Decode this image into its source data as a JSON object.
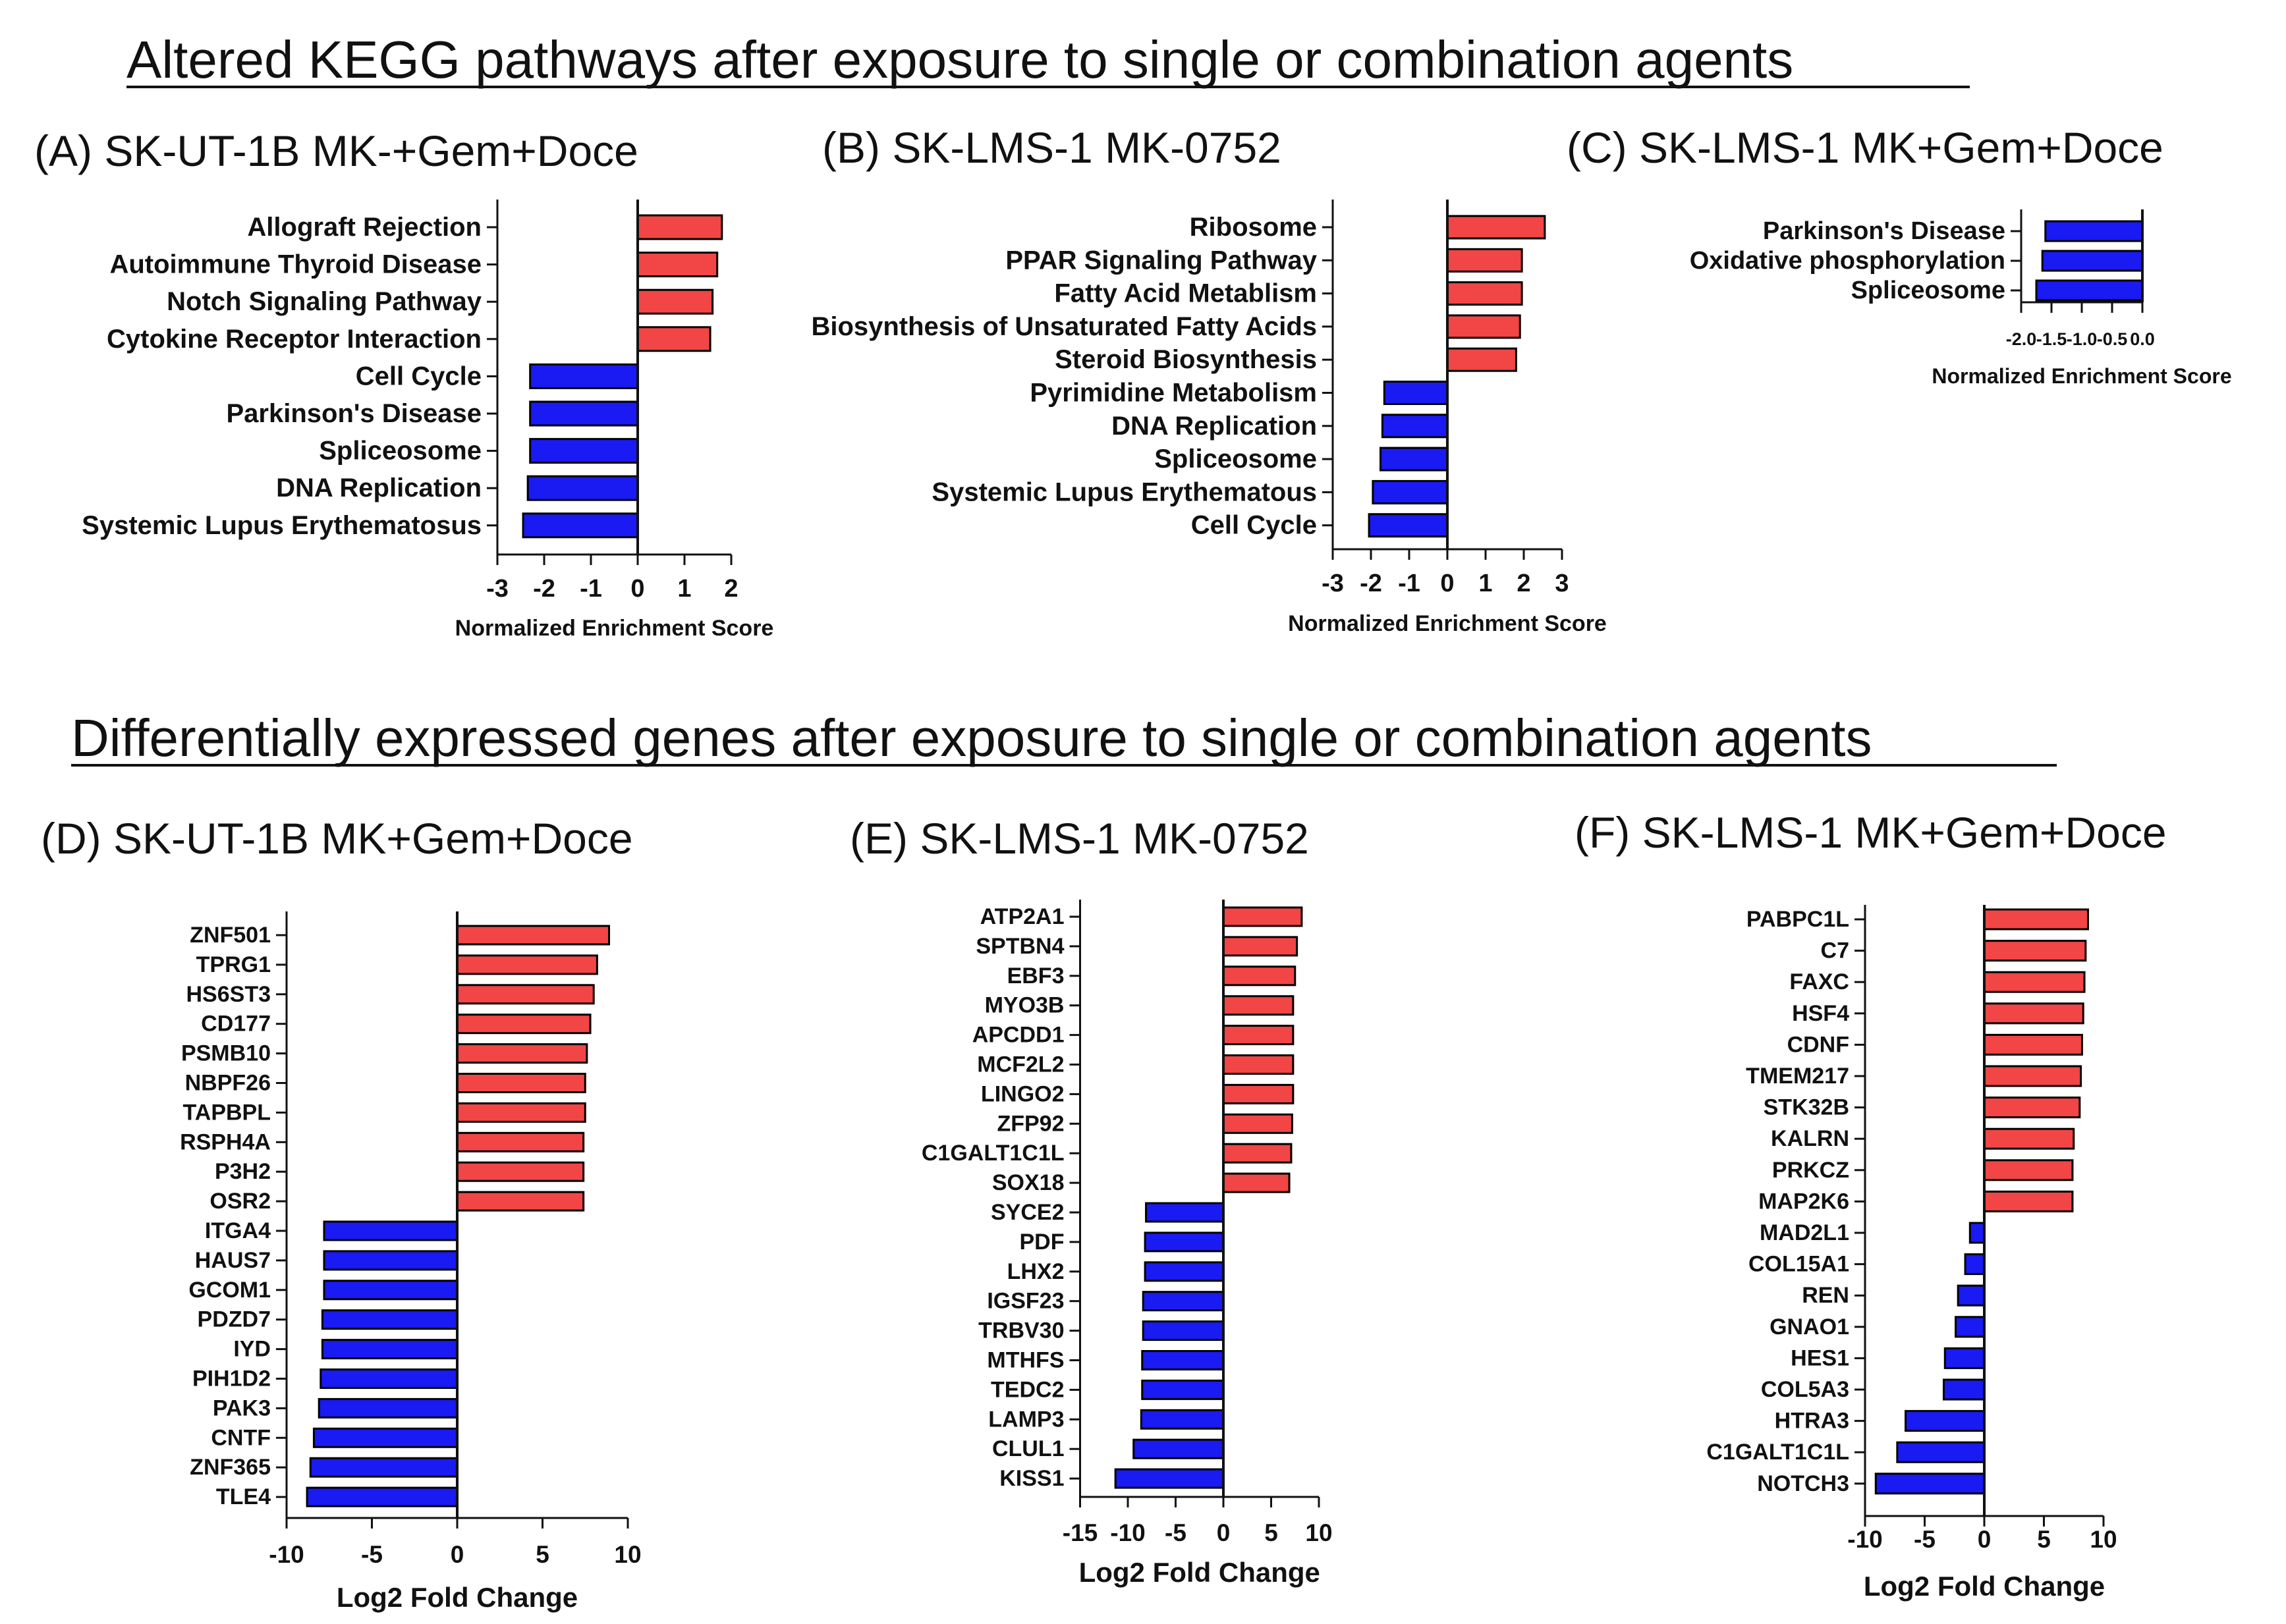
{
  "section_titles": [
    "Altered KEGG pathways after exposure to single or combination agents",
    "Differentially expressed genes after exposure to single or combination agents"
  ],
  "colors": {
    "positive": "#F24545",
    "negative": "#1A1AF2",
    "outline": "#000000"
  },
  "chart_data": [
    {
      "type": "bar",
      "orientation": "horizontal",
      "title": "(A) SK-UT-1B MK-+Gem+Doce",
      "xlabel": "Normalized Enrichment Score",
      "xlim": [
        -3,
        2
      ],
      "xticks": [
        -3,
        -2,
        -1,
        0,
        1,
        2
      ],
      "categories": [
        "Allograft Rejection",
        "Autoimmune Thyroid Disease",
        "Notch Signaling Pathway",
        "Cytokine Receptor Interaction",
        "Cell Cycle",
        "Parkinson's Disease",
        "Spliceosome",
        "DNA Replication",
        "Systemic Lupus Erythematosus"
      ],
      "values": [
        1.8,
        1.7,
        1.6,
        1.55,
        -2.3,
        -2.3,
        -2.3,
        -2.35,
        -2.45
      ]
    },
    {
      "type": "bar",
      "orientation": "horizontal",
      "title": "(B) SK-LMS-1 MK-0752",
      "xlabel": "Normalized Enrichment Score",
      "xlim": [
        -3,
        3
      ],
      "xticks": [
        -3,
        -2,
        -1,
        0,
        1,
        2,
        3
      ],
      "categories": [
        "Ribosome",
        "PPAR Signaling Pathway",
        "Fatty Acid Metablism",
        "Biosynthesis of Unsaturated Fatty Acids",
        "Steroid Biosynthesis",
        "Pyrimidine Metabolism",
        "DNA Replication",
        "Spliceosome",
        "Systemic Lupus Erythematous",
        "Cell Cycle"
      ],
      "values": [
        2.55,
        1.95,
        1.95,
        1.9,
        1.8,
        -1.65,
        -1.7,
        -1.75,
        -1.95,
        -2.05
      ]
    },
    {
      "type": "bar",
      "orientation": "horizontal",
      "title": "(C) SK-LMS-1 MK+Gem+Doce",
      "xlabel": "Normalized Enrichment Score",
      "xlim": [
        -2.0,
        0.0
      ],
      "xticks": [
        "-2.0",
        "-1.5",
        "-1.0",
        "-0.5",
        "0.0"
      ],
      "categories": [
        "Parkinson's Disease",
        "Oxidative phosphorylation",
        "Spliceosome"
      ],
      "values": [
        -1.6,
        -1.65,
        -1.75
      ]
    },
    {
      "type": "bar",
      "orientation": "horizontal",
      "title": "(D) SK-UT-1B MK+Gem+Doce",
      "xlabel": "Log2 Fold Change",
      "xlim": [
        -10,
        10
      ],
      "xticks": [
        -10,
        -5,
        0,
        5,
        10
      ],
      "categories": [
        "ZNF501",
        "TPRG1",
        "HS6ST3",
        "CD177",
        "PSMB10",
        "NBPF26",
        "TAPBPL",
        "RSPH4A",
        "P3H2",
        "OSR2",
        "ITGA4",
        "HAUS7",
        "GCOM1",
        "PDZD7",
        "IYD",
        "PIH1D2",
        "PAK3",
        "CNTF",
        "ZNF365",
        "TLE4"
      ],
      "values": [
        8.9,
        8.2,
        8.0,
        7.8,
        7.6,
        7.5,
        7.5,
        7.4,
        7.4,
        7.4,
        -7.8,
        -7.8,
        -7.8,
        -7.9,
        -7.9,
        -8.0,
        -8.1,
        -8.4,
        -8.6,
        -8.8
      ]
    },
    {
      "type": "bar",
      "orientation": "horizontal",
      "title": "(E) SK-LMS-1 MK-0752",
      "xlabel": "Log2 Fold Change",
      "xlim": [
        -15,
        10
      ],
      "xticks": [
        -15,
        -10,
        -5,
        0,
        5,
        10
      ],
      "categories": [
        "ATP2A1",
        "SPTBN4",
        "EBF3",
        "MYO3B",
        "APCDD1",
        "MCF2L2",
        "LINGO2",
        "ZFP92",
        "C1GALT1C1L",
        "SOX18",
        "SYCE2",
        "PDF",
        "LHX2",
        "IGSF23",
        "TRBV30",
        "MTHFS",
        "TEDC2",
        "LAMP3",
        "CLUL1",
        "KISS1"
      ],
      "values": [
        8.2,
        7.7,
        7.5,
        7.3,
        7.3,
        7.3,
        7.3,
        7.2,
        7.1,
        6.9,
        -8.1,
        -8.2,
        -8.2,
        -8.4,
        -8.4,
        -8.5,
        -8.5,
        -8.6,
        -9.4,
        -11.3
      ]
    },
    {
      "type": "bar",
      "orientation": "horizontal",
      "title": "(F) SK-LMS-1 MK+Gem+Doce",
      "xlabel": "Log2 Fold Change",
      "xlim": [
        -10,
        10
      ],
      "xticks": [
        -10,
        -5,
        0,
        5,
        10
      ],
      "categories": [
        "PABPC1L",
        "C7",
        "FAXC",
        "HSF4",
        "CDNF",
        "TMEM217",
        "STK32B",
        "KALRN",
        "PRKCZ",
        "MAP2K6",
        "MAD2L1",
        "COL15A1",
        "REN",
        "GNAO1",
        "HES1",
        "COL5A3",
        "HTRA3",
        "C1GALT1C1L",
        "NOTCH3"
      ],
      "values": [
        8.7,
        8.5,
        8.4,
        8.3,
        8.2,
        8.1,
        8.0,
        7.5,
        7.4,
        7.4,
        -1.2,
        -1.6,
        -2.2,
        -2.4,
        -3.3,
        -3.4,
        -6.6,
        -7.3,
        -9.1
      ]
    }
  ]
}
